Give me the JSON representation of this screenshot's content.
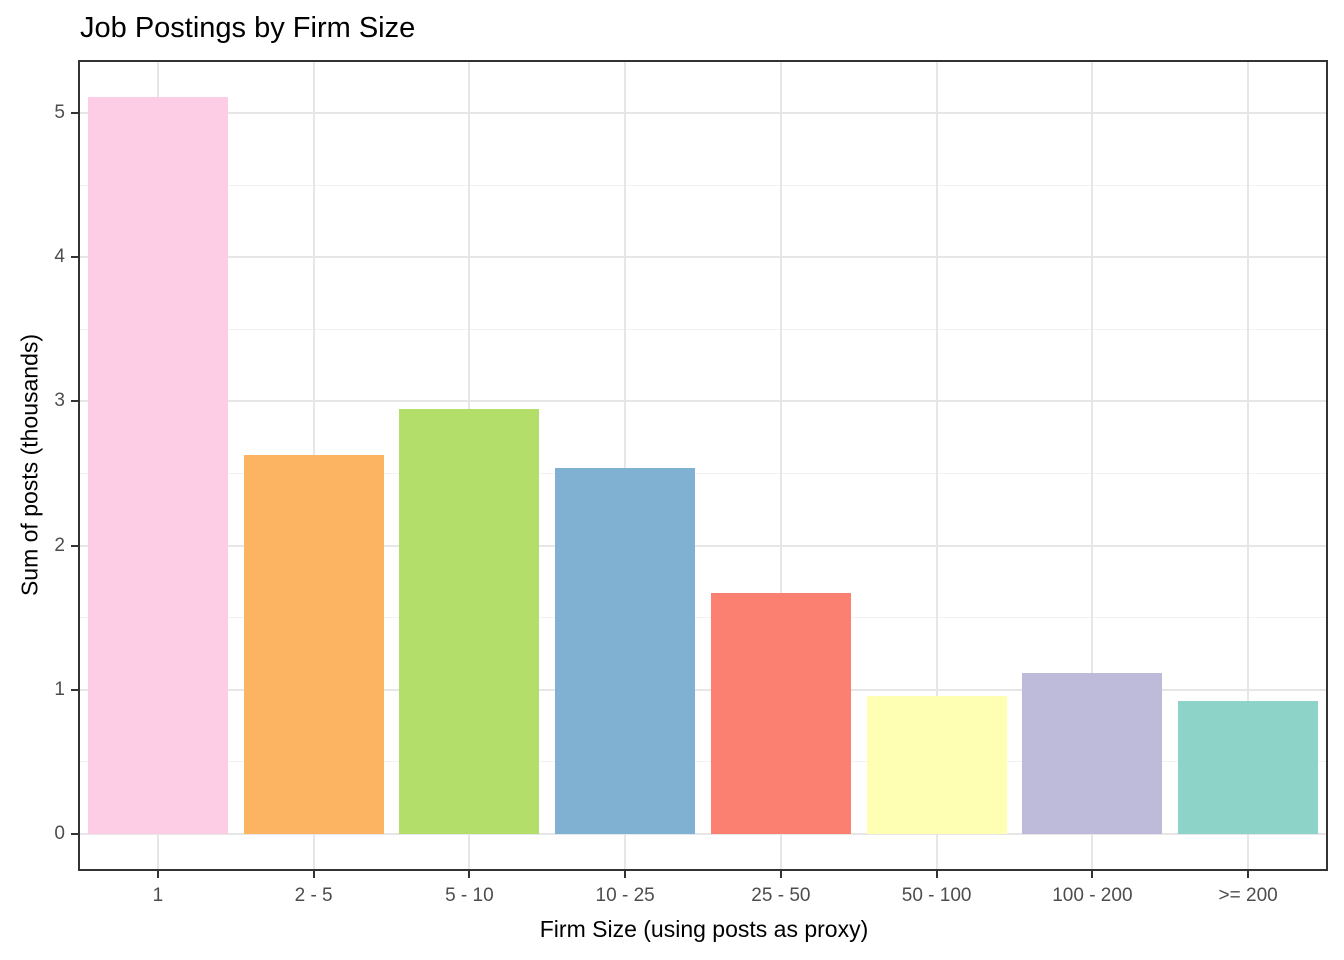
{
  "chart_data": {
    "type": "bar",
    "title": "Job Postings by Firm Size",
    "xlabel": "Firm Size (using posts as proxy)",
    "ylabel": "Sum of posts (thousands)",
    "categories": [
      "1",
      "2 - 5",
      "5 - 10",
      "10 - 25",
      "25 - 50",
      "50 - 100",
      "100 - 200",
      ">= 200"
    ],
    "values": [
      5.11,
      2.63,
      2.95,
      2.54,
      1.67,
      0.96,
      1.12,
      0.92
    ],
    "bar_colors": [
      "#fccde5",
      "#fdb462",
      "#b3de69",
      "#80b1d3",
      "#fb8072",
      "#ffffb3",
      "#bebada",
      "#8dd3c7"
    ],
    "y_ticks": [
      0,
      1,
      2,
      3,
      4,
      5
    ],
    "y_minor_ticks": [
      0.5,
      1.5,
      2.5,
      3.5,
      4.5
    ],
    "ylim": [
      0,
      5.37
    ],
    "bar_width_fraction": 0.9,
    "grid": "major and minor horizontal, major vertical at category centers",
    "legend": "none",
    "colors": {
      "grid_major": "#e6e6e6",
      "grid_minor": "#f2f2f2",
      "panel_border": "#333333",
      "axis_text": "#4d4d4d",
      "tick_mark": "#333333",
      "title_text": "#000000",
      "panel_background": "#ffffff"
    }
  }
}
